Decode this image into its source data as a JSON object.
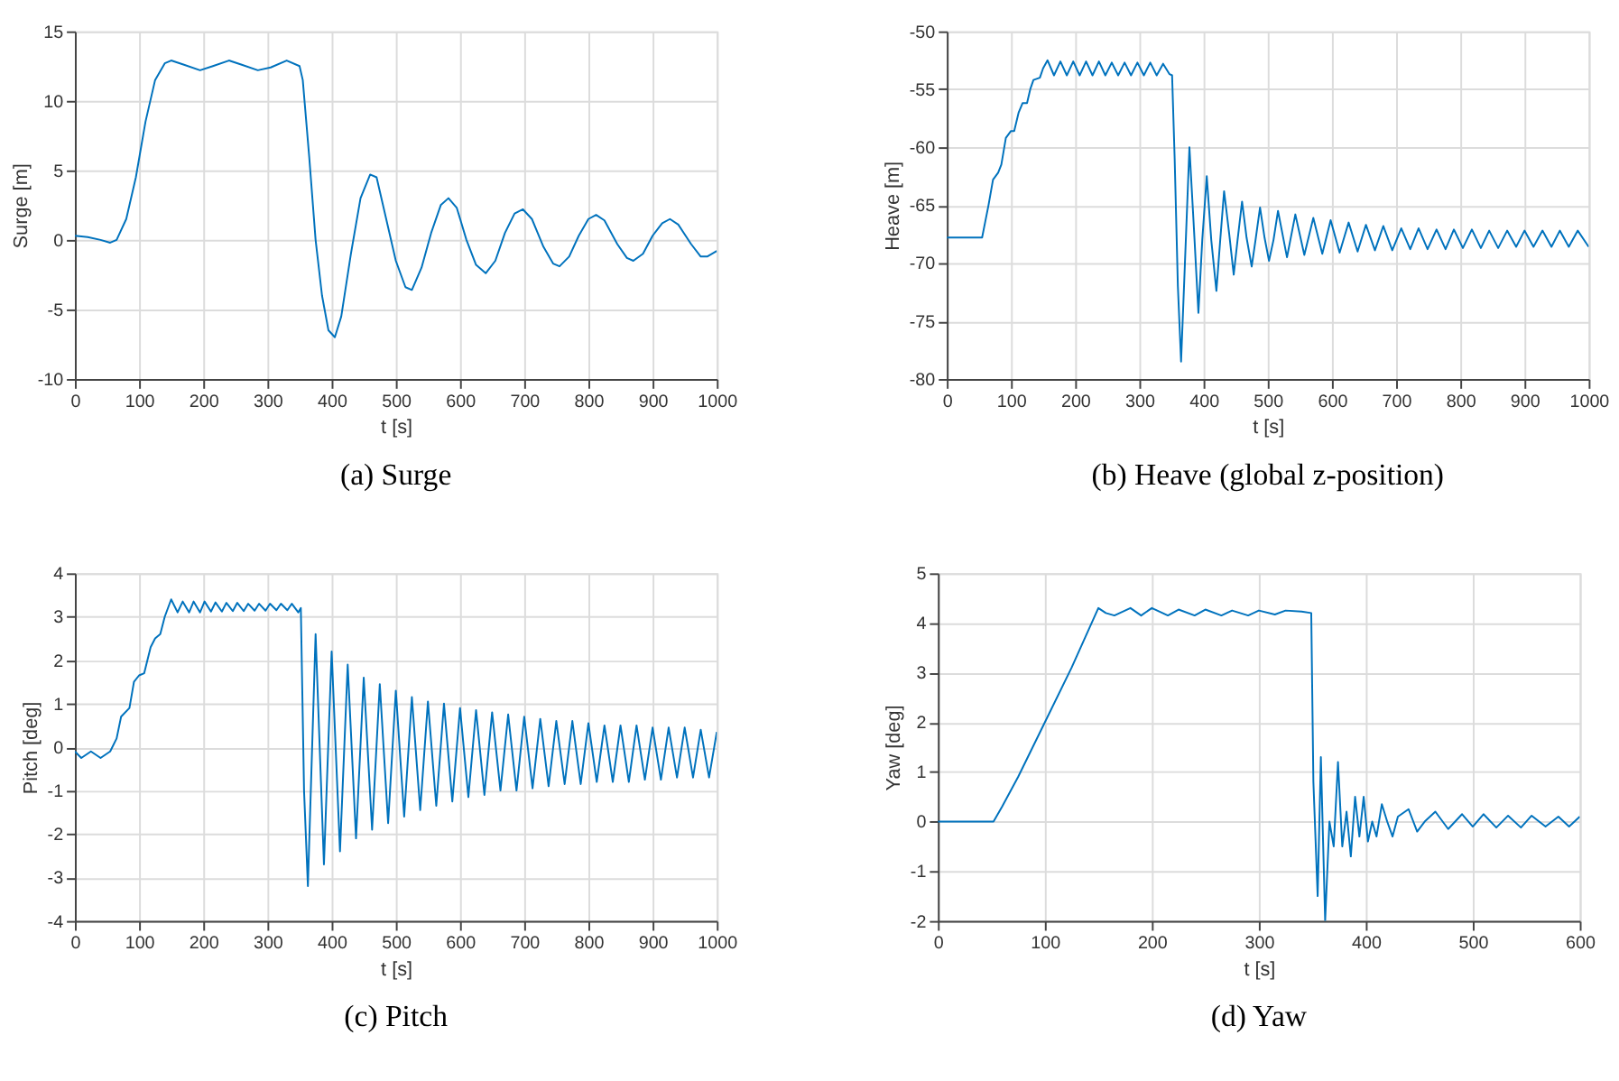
{
  "chart_data": [
    {
      "type": "line",
      "title": "(a) Surge",
      "xlabel": "t [s]",
      "ylabel": "Surge [m]",
      "xlim": [
        0,
        1000
      ],
      "ylim": [
        -10,
        15
      ],
      "xticks": [
        0,
        100,
        200,
        300,
        400,
        500,
        600,
        700,
        800,
        900,
        1000
      ],
      "yticks": [
        -10,
        -5,
        0,
        5,
        10,
        15
      ],
      "grid": true,
      "marker": "none",
      "series": [
        {
          "color": "#0072bd",
          "x": [
            0,
            20,
            40,
            55,
            65,
            80,
            95,
            110,
            125,
            140,
            150,
            170,
            195,
            215,
            240,
            260,
            285,
            305,
            330,
            350,
            355,
            365,
            375,
            385,
            395,
            405,
            415,
            430,
            445,
            460,
            470,
            485,
            500,
            515,
            525,
            540,
            555,
            570,
            582,
            595,
            610,
            625,
            640,
            655,
            670,
            685,
            698,
            712,
            730,
            745,
            755,
            770,
            785,
            800,
            812,
            825,
            845,
            860,
            870,
            885,
            900,
            915,
            927,
            940,
            960,
            975,
            985,
            1000
          ],
          "values": [
            0.3,
            0.2,
            0,
            -0.2,
            0,
            1.5,
            4.5,
            8.5,
            11.5,
            12.7,
            12.9,
            12.6,
            12.2,
            12.5,
            12.9,
            12.6,
            12.2,
            12.4,
            12.9,
            12.5,
            11.5,
            6,
            0,
            -4,
            -6.5,
            -7,
            -5.5,
            -1,
            3,
            4.7,
            4.5,
            1.5,
            -1.5,
            -3.4,
            -3.6,
            -2,
            0.5,
            2.5,
            3,
            2.3,
            0,
            -1.8,
            -2.4,
            -1.5,
            0.5,
            1.9,
            2.2,
            1.5,
            -0.5,
            -1.7,
            -1.9,
            -1.2,
            0.3,
            1.5,
            1.8,
            1.4,
            -0.3,
            -1.3,
            -1.5,
            -1,
            0.3,
            1.2,
            1.5,
            1.1,
            -0.3,
            -1.2,
            -1.2,
            -0.8
          ]
        }
      ]
    },
    {
      "type": "line",
      "title": "(b) Heave (global z-position)",
      "xlabel": "t [s]",
      "ylabel": "Heave [m]",
      "xlim": [
        0,
        1000
      ],
      "ylim": [
        -80,
        -50
      ],
      "xticks": [
        0,
        100,
        200,
        300,
        400,
        500,
        600,
        700,
        800,
        900,
        1000
      ],
      "yticks": [
        -80,
        -75,
        -70,
        -65,
        -60,
        -55,
        -50
      ],
      "grid": true,
      "marker": "none",
      "series": [
        {
          "color": "#0072bd",
          "x": [
            0,
            55,
            65,
            72,
            80,
            85,
            92,
            100,
            105,
            112,
            118,
            125,
            130,
            135,
            145,
            150,
            157,
            167,
            177,
            187,
            197,
            207,
            217,
            227,
            237,
            247,
            257,
            267,
            277,
            287,
            297,
            307,
            317,
            327,
            337,
            347,
            351,
            355,
            360,
            365,
            371,
            378,
            385,
            392,
            398,
            405,
            412,
            420,
            426,
            432,
            440,
            447,
            453,
            460,
            467,
            475,
            481,
            488,
            495,
            502,
            509,
            516,
            530,
            543,
            557,
            571,
            585,
            598,
            612,
            626,
            640,
            653,
            667,
            680,
            694,
            708,
            722,
            735,
            749,
            763,
            777,
            790,
            804,
            818,
            832,
            845,
            859,
            873,
            887,
            900,
            914,
            928,
            942,
            955,
            969,
            983,
            1000
          ],
          "values": [
            -67.8,
            -67.8,
            -65,
            -62.8,
            -62.2,
            -61.5,
            -59.2,
            -58.6,
            -58.6,
            -57,
            -56.2,
            -56.2,
            -55,
            -54.2,
            -54,
            -53.2,
            -52.5,
            -53.8,
            -52.6,
            -53.8,
            -52.6,
            -53.8,
            -52.6,
            -53.8,
            -52.6,
            -53.8,
            -52.7,
            -53.8,
            -52.7,
            -53.8,
            -52.7,
            -53.8,
            -52.7,
            -53.8,
            -52.8,
            -53.7,
            -53.8,
            -61,
            -72,
            -78.5,
            -70,
            -60,
            -67,
            -74.3,
            -68,
            -62.5,
            -68,
            -72.4,
            -68,
            -63.8,
            -67.5,
            -71,
            -68,
            -64.7,
            -67.8,
            -70.3,
            -68,
            -65.2,
            -67.8,
            -69.8,
            -68,
            -65.5,
            -69.5,
            -65.8,
            -69.3,
            -66.1,
            -69.2,
            -66.3,
            -69.1,
            -66.5,
            -69,
            -66.7,
            -68.9,
            -66.8,
            -68.9,
            -67,
            -68.8,
            -67,
            -68.8,
            -67.1,
            -68.8,
            -67.1,
            -68.7,
            -67.1,
            -68.7,
            -67.2,
            -68.7,
            -67.2,
            -68.6,
            -67.2,
            -68.6,
            -67.2,
            -68.6,
            -67.2,
            -68.6,
            -67.2,
            -68.6
          ]
        }
      ]
    },
    {
      "type": "line",
      "title": "(c) Pitch",
      "xlabel": "t [s]",
      "ylabel": "Pitch [deg]",
      "xlim": [
        0,
        1000
      ],
      "ylim": [
        -4,
        4
      ],
      "xticks": [
        0,
        100,
        200,
        300,
        400,
        500,
        600,
        700,
        800,
        900,
        1000
      ],
      "yticks": [
        -4,
        -3,
        -2,
        -1,
        0,
        1,
        2,
        3,
        4
      ],
      "grid": true,
      "marker": "none",
      "series": [
        {
          "color": "#0072bd",
          "x": [
            0,
            10,
            25,
            40,
            55,
            65,
            72,
            85,
            92,
            100,
            108,
            118,
            125,
            133,
            140,
            150,
            160,
            168,
            178,
            185,
            195,
            202,
            212,
            219,
            229,
            236,
            246,
            253,
            263,
            270,
            280,
            287,
            297,
            304,
            314,
            321,
            331,
            338,
            348,
            352,
            357,
            363,
            375,
            388,
            400,
            413,
            425,
            438,
            450,
            463,
            475,
            488,
            500,
            513,
            525,
            538,
            550,
            563,
            575,
            588,
            600,
            613,
            625,
            638,
            650,
            663,
            675,
            688,
            700,
            713,
            725,
            738,
            750,
            763,
            775,
            788,
            800,
            813,
            825,
            838,
            850,
            863,
            875,
            888,
            900,
            913,
            925,
            938,
            950,
            963,
            975,
            988,
            1000
          ],
          "values": [
            -0.1,
            -0.25,
            -0.1,
            -0.25,
            -0.1,
            0.2,
            0.7,
            0.9,
            1.5,
            1.65,
            1.7,
            2.3,
            2.5,
            2.6,
            3,
            3.4,
            3.1,
            3.35,
            3.1,
            3.35,
            3.1,
            3.35,
            3.12,
            3.33,
            3.12,
            3.32,
            3.13,
            3.32,
            3.13,
            3.3,
            3.14,
            3.3,
            3.14,
            3.3,
            3.15,
            3.3,
            3.15,
            3.3,
            3.1,
            3.2,
            -1,
            -3.2,
            2.6,
            -2.7,
            2.2,
            -2.4,
            1.9,
            -2.1,
            1.6,
            -1.9,
            1.45,
            -1.75,
            1.3,
            -1.6,
            1.15,
            -1.45,
            1.05,
            -1.35,
            1,
            -1.25,
            0.9,
            -1.15,
            0.85,
            -1.1,
            0.8,
            -1,
            0.75,
            -1,
            0.7,
            -0.95,
            0.65,
            -0.9,
            0.6,
            -0.85,
            0.6,
            -0.85,
            0.55,
            -0.8,
            0.5,
            -0.8,
            0.5,
            -0.8,
            0.5,
            -0.75,
            0.45,
            -0.75,
            0.45,
            -0.7,
            0.45,
            -0.7,
            0.4,
            -0.7,
            0.35
          ]
        }
      ]
    },
    {
      "type": "line",
      "title": "(d) Yaw",
      "xlabel": "t [s]",
      "ylabel": "Yaw [deg]",
      "xlim": [
        0,
        600
      ],
      "ylim": [
        -2,
        5
      ],
      "xticks": [
        0,
        100,
        200,
        300,
        400,
        500,
        600
      ],
      "yticks": [
        -2,
        -1,
        0,
        1,
        2,
        3,
        4,
        5
      ],
      "grid": true,
      "marker": "none",
      "series": [
        {
          "color": "#0072bd",
          "x": [
            0,
            52,
            60,
            75,
            100,
            125,
            150,
            157,
            165,
            180,
            190,
            200,
            215,
            225,
            240,
            250,
            265,
            275,
            290,
            300,
            315,
            325,
            340,
            349,
            351,
            355,
            358,
            362,
            366,
            370,
            374,
            378,
            382,
            386,
            390,
            394,
            398,
            402,
            406,
            410,
            415,
            420,
            425,
            430,
            440,
            448,
            455,
            465,
            477,
            490,
            500,
            510,
            522,
            533,
            545,
            555,
            568,
            580,
            590,
            600
          ],
          "values": [
            0,
            0,
            0.3,
            0.9,
            2,
            3.1,
            4.3,
            4.2,
            4.15,
            4.3,
            4.15,
            4.3,
            4.15,
            4.27,
            4.15,
            4.27,
            4.15,
            4.25,
            4.15,
            4.25,
            4.17,
            4.25,
            4.23,
            4.2,
            0.8,
            -1.5,
            1.3,
            -2,
            0,
            -0.5,
            1.2,
            -0.5,
            0.2,
            -0.7,
            0.5,
            -0.3,
            0.5,
            -0.4,
            0,
            -0.3,
            0.35,
            0,
            -0.3,
            0.1,
            0.25,
            -0.2,
            0,
            0.2,
            -0.15,
            0.15,
            -0.1,
            0.15,
            -0.12,
            0.12,
            -0.12,
            0.12,
            -0.1,
            0.1,
            -0.1,
            0.1
          ]
        }
      ]
    }
  ]
}
